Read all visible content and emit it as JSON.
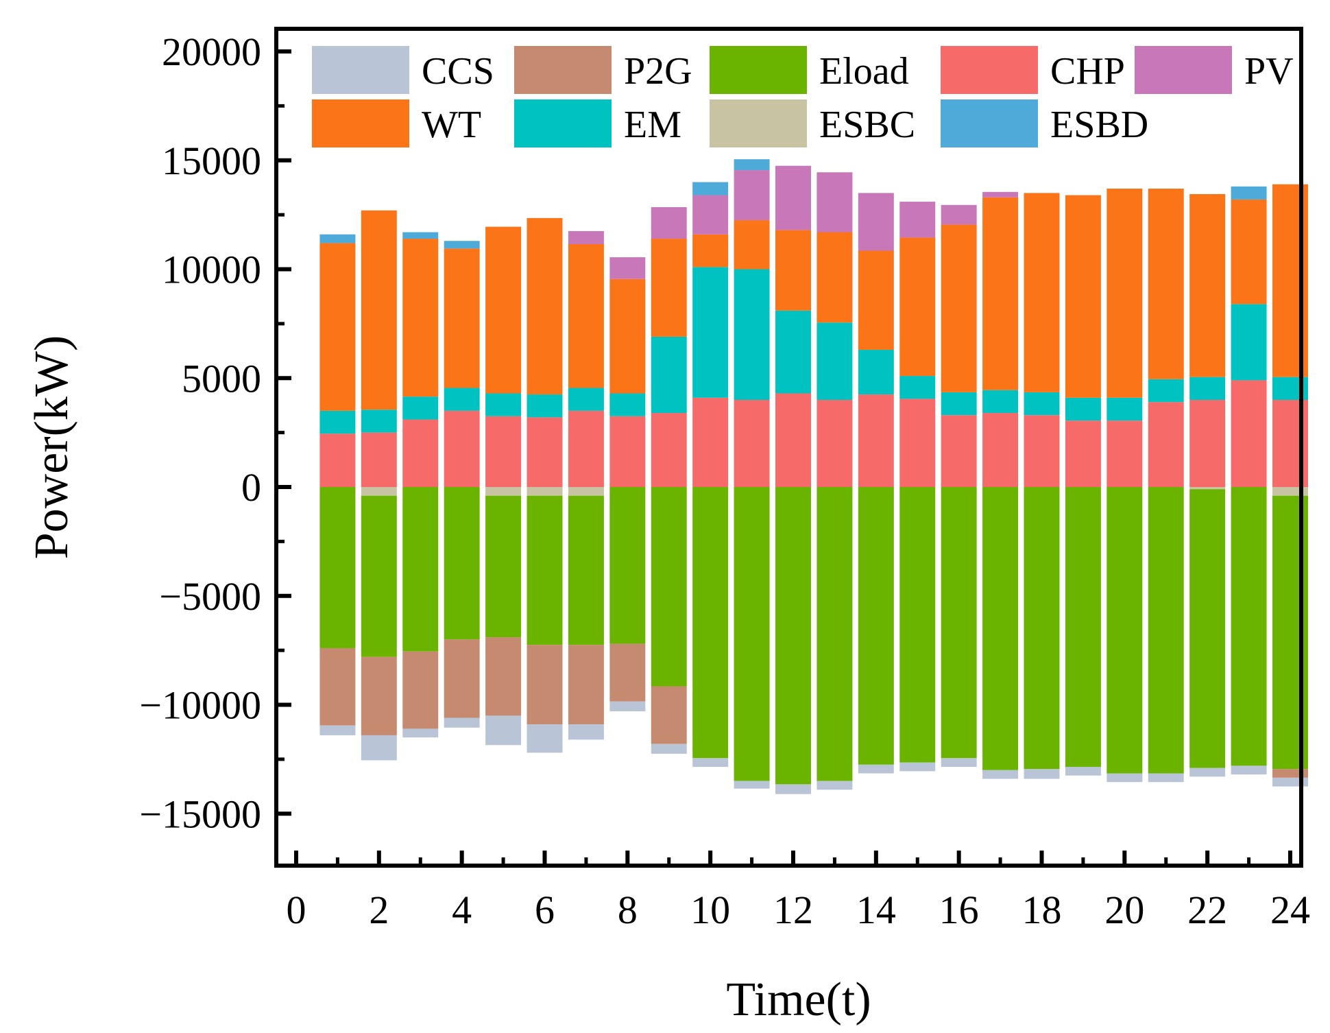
{
  "chart_data": {
    "type": "bar",
    "stacked": true,
    "xlabel": "Time(t)",
    "ylabel": "Power(kW)",
    "xlim": [
      0,
      24
    ],
    "ylim": [
      -17500,
      20500
    ],
    "xticks": [
      0,
      2,
      4,
      6,
      8,
      10,
      12,
      14,
      16,
      18,
      20,
      22,
      24
    ],
    "yticks": [
      20000,
      15000,
      10000,
      5000,
      0,
      -5000,
      -10000,
      -15000
    ],
    "ytick_labels": [
      "20000",
      "15000",
      "10000",
      "5000",
      "0",
      "−5000",
      "−10000",
      "−15000"
    ],
    "legend_position": "top",
    "categories": [
      1,
      2,
      3,
      4,
      5,
      6,
      7,
      8,
      9,
      10,
      11,
      12,
      13,
      14,
      15,
      16,
      17,
      18,
      19,
      20,
      21,
      22,
      23,
      24
    ],
    "series": [
      {
        "name": "CHP",
        "color": "#f76a6a",
        "values": [
          2450,
          2500,
          3100,
          3500,
          3250,
          3200,
          3500,
          3250,
          3400,
          4100,
          4000,
          4300,
          4000,
          4250,
          4050,
          3300,
          3400,
          3300,
          3050,
          3050,
          3900,
          4000,
          4900,
          4000
        ]
      },
      {
        "name": "EM",
        "color": "#00c2c0",
        "values": [
          1050,
          1050,
          1050,
          1050,
          1050,
          1050,
          1050,
          1050,
          3500,
          6000,
          6000,
          3800,
          3550,
          2050,
          1050,
          1050,
          1050,
          1050,
          1050,
          1050,
          1050,
          1050,
          3500,
          1050
        ]
      },
      {
        "name": "WT",
        "color": "#fc7418",
        "values": [
          7700,
          9150,
          7250,
          6400,
          7650,
          8100,
          6600,
          5250,
          4500,
          1500,
          2250,
          3700,
          4150,
          4550,
          6350,
          7700,
          8850,
          9150,
          9300,
          9600,
          8750,
          8400,
          4800,
          8850
        ]
      },
      {
        "name": "PV",
        "color": "#c877b9",
        "values": [
          0,
          0,
          0,
          0,
          0,
          0,
          600,
          1000,
          1450,
          1800,
          2300,
          2950,
          2750,
          2650,
          1650,
          900,
          250,
          0,
          0,
          0,
          0,
          0,
          0,
          0
        ]
      },
      {
        "name": "ESBD",
        "color": "#4eaad8",
        "values": [
          400,
          0,
          300,
          350,
          0,
          0,
          0,
          0,
          0,
          600,
          500,
          0,
          0,
          0,
          0,
          0,
          0,
          0,
          0,
          0,
          0,
          0,
          600,
          0
        ]
      },
      {
        "name": "ESBC",
        "color": "#c8c3a3",
        "values": [
          0,
          -400,
          0,
          0,
          -400,
          -400,
          -400,
          0,
          0,
          0,
          0,
          0,
          0,
          0,
          0,
          0,
          0,
          0,
          0,
          0,
          0,
          -100,
          0,
          -400
        ]
      },
      {
        "name": "Eload",
        "color": "#6ab400",
        "values": [
          -7400,
          -7400,
          -7550,
          -7000,
          -6500,
          -6850,
          -6850,
          -7200,
          -9150,
          -12450,
          -13500,
          -13650,
          -13500,
          -12750,
          -12650,
          -12450,
          -13000,
          -12950,
          -12850,
          -13150,
          -13150,
          -12800,
          -12800,
          -12550
        ]
      },
      {
        "name": "P2G",
        "color": "#c68a70",
        "values": [
          -3550,
          -3600,
          -3550,
          -3600,
          -3600,
          -3650,
          -3650,
          -2650,
          -2650,
          0,
          0,
          0,
          0,
          0,
          0,
          0,
          0,
          0,
          0,
          0,
          0,
          0,
          0,
          -400
        ]
      },
      {
        "name": "CCS",
        "color": "#b9c5d6",
        "values": [
          -450,
          -1150,
          -400,
          -450,
          -1350,
          -1300,
          -700,
          -450,
          -450,
          -400,
          -350,
          -450,
          -400,
          -400,
          -400,
          -400,
          -400,
          -450,
          -400,
          -400,
          -400,
          -400,
          -400,
          -400
        ]
      }
    ],
    "legend": [
      "CCS",
      "P2G",
      "Eload",
      "CHP",
      "PV",
      "WT",
      "EM",
      "ESBC",
      "ESBD"
    ]
  }
}
